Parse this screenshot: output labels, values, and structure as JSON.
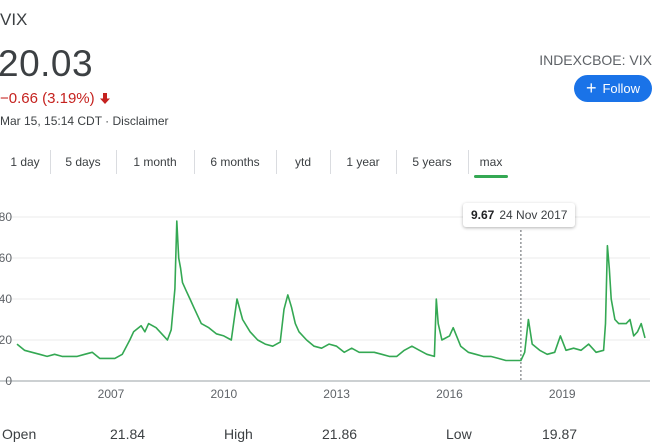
{
  "quote": {
    "symbol": "VIX",
    "price": "20.03",
    "change": "−0.66 (3.19%)",
    "meta": "Mar 15, 15:14 CDT · Disclaimer",
    "exchange": "INDEXCBOE: VIX",
    "follow_label": "Follow",
    "down_color": "#c5221f",
    "accent_color": "#1a73e8"
  },
  "tabs": [
    {
      "label": "1 day"
    },
    {
      "label": "5 days"
    },
    {
      "label": "1 month"
    },
    {
      "label": "6 months"
    },
    {
      "label": "ytd"
    },
    {
      "label": "1 year"
    },
    {
      "label": "5 years"
    },
    {
      "label": "max",
      "active": true
    }
  ],
  "tooltip": {
    "value": "9.67",
    "date": "24 Nov 2017"
  },
  "stats": {
    "open_label": "Open",
    "open_value": "21.84",
    "high_label": "High",
    "high_value": "21.86",
    "low_label": "Low",
    "low_value": "19.87"
  },
  "chart_data": {
    "type": "line",
    "title": "",
    "xlabel": "",
    "ylabel": "",
    "line_color": "#34a853",
    "grid": true,
    "xlim": [
      2004.5,
      2021.2
    ],
    "ylim": [
      0,
      80
    ],
    "x_ticks": [
      2007,
      2010,
      2013,
      2016,
      2019
    ],
    "y_ticks": [
      0,
      20,
      40,
      60,
      80
    ],
    "x_tick_labels": [
      "2007",
      "2010",
      "2013",
      "2016",
      "2019"
    ],
    "y_tick_labels": [
      "0",
      "20",
      "40",
      "60",
      "80"
    ],
    "crosshair_x": 2017.9,
    "series": [
      {
        "x": [
          2004.5,
          2004.7,
          2004.9,
          2005.1,
          2005.3,
          2005.5,
          2005.7,
          2005.9,
          2006.1,
          2006.3,
          2006.5,
          2006.7,
          2006.9,
          2007.1,
          2007.3,
          2007.5,
          2007.6,
          2007.8,
          2007.9,
          2008.0,
          2008.2,
          2008.4,
          2008.5,
          2008.6,
          2008.7,
          2008.75,
          2008.8,
          2008.85,
          2008.9,
          2009.0,
          2009.1,
          2009.2,
          2009.4,
          2009.6,
          2009.8,
          2010.0,
          2010.2,
          2010.35,
          2010.5,
          2010.7,
          2010.9,
          2011.1,
          2011.3,
          2011.5,
          2011.6,
          2011.7,
          2011.8,
          2011.9,
          2012.0,
          2012.2,
          2012.4,
          2012.6,
          2012.8,
          2013.0,
          2013.2,
          2013.4,
          2013.6,
          2013.8,
          2014.0,
          2014.2,
          2014.4,
          2014.6,
          2014.8,
          2015.0,
          2015.2,
          2015.4,
          2015.6,
          2015.65,
          2015.7,
          2015.8,
          2016.0,
          2016.1,
          2016.3,
          2016.5,
          2016.7,
          2016.9,
          2017.1,
          2017.3,
          2017.5,
          2017.7,
          2017.9,
          2018.0,
          2018.1,
          2018.2,
          2018.4,
          2018.6,
          2018.8,
          2018.95,
          2019.1,
          2019.3,
          2019.5,
          2019.7,
          2019.9,
          2020.1,
          2020.15,
          2020.2,
          2020.25,
          2020.3,
          2020.4,
          2020.5,
          2020.6,
          2020.7,
          2020.8,
          2020.9,
          2021.0,
          2021.1,
          2021.2
        ],
        "y": [
          18,
          15,
          14,
          13,
          12,
          13,
          12,
          12,
          12,
          13,
          14,
          11,
          11,
          11,
          13,
          20,
          24,
          27,
          24,
          28,
          26,
          22,
          20,
          25,
          45,
          78,
          60,
          55,
          48,
          44,
          40,
          36,
          28,
          26,
          23,
          22,
          20,
          40,
          30,
          24,
          20,
          18,
          17,
          19,
          35,
          42,
          36,
          28,
          24,
          20,
          17,
          16,
          18,
          17,
          14,
          16,
          14,
          14,
          14,
          13,
          12,
          12,
          15,
          17,
          15,
          13,
          12,
          40,
          28,
          20,
          22,
          26,
          17,
          14,
          13,
          12,
          12,
          11,
          10,
          10,
          10,
          14,
          30,
          18,
          15,
          13,
          14,
          22,
          15,
          16,
          15,
          18,
          14,
          15,
          28,
          66,
          55,
          40,
          30,
          28,
          28,
          28,
          30,
          22,
          24,
          28,
          21
        ]
      }
    ]
  }
}
